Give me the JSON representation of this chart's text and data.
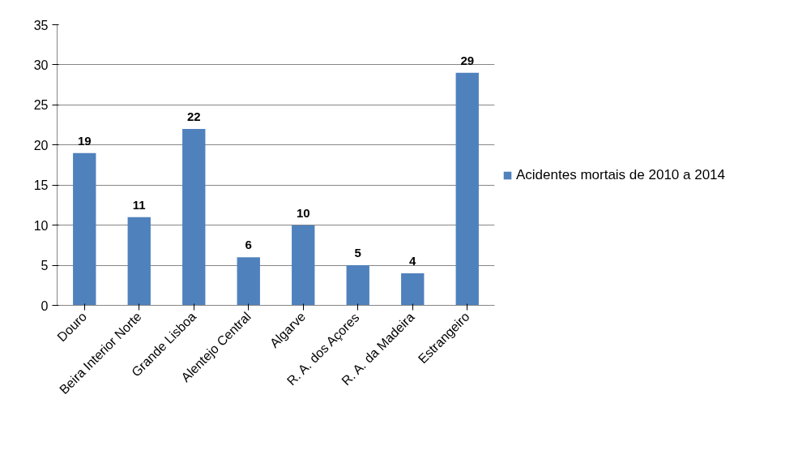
{
  "chart_data": {
    "type": "bar",
    "categories": [
      "Douro",
      "Beira Interior Norte",
      "Grande Lisboa",
      "Alentejo Central",
      "Algarve",
      "R. A. dos Açores",
      "R. A. da Madeira",
      "Estrangeiro"
    ],
    "series": [
      {
        "name": "Acidentes mortais de 2010 a 2014",
        "color": "#4f81bd",
        "values": [
          19,
          11,
          22,
          6,
          10,
          5,
          4,
          29
        ]
      }
    ],
    "ylim": [
      0,
      35
    ],
    "yticks": [
      0,
      5,
      10,
      15,
      20,
      25,
      30,
      35
    ],
    "grid": "y",
    "legend": "right",
    "data_labels": true
  }
}
